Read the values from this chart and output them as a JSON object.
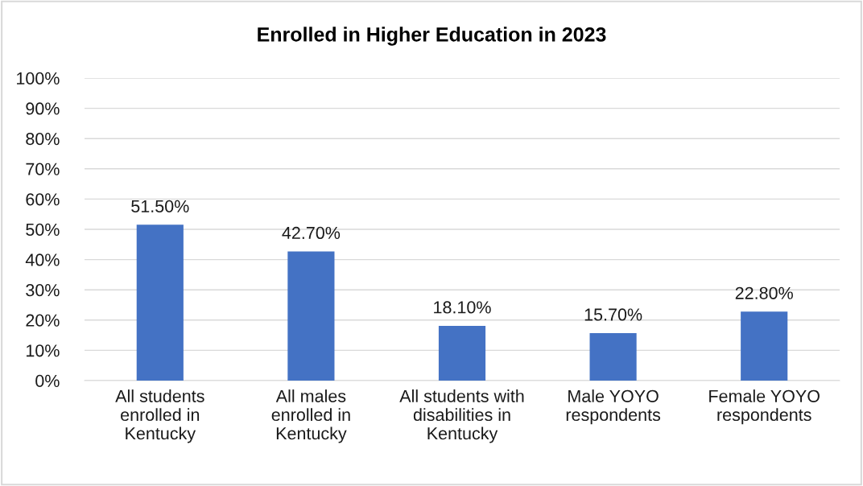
{
  "chart_data": {
    "type": "bar",
    "title": "Enrolled in Higher Education in 2023",
    "categories": [
      "All students\nenrolled in\nKentucky",
      "All males\nenrolled in\nKentucky",
      "All students with\ndisabilities in\nKentucky",
      "Male YOYO\nrespondents",
      "Female YOYO\nrespondents"
    ],
    "values": [
      51.5,
      42.7,
      18.1,
      15.7,
      22.8
    ],
    "value_labels": [
      "51.50%",
      "42.70%",
      "18.10%",
      "15.70%",
      "22.80%"
    ],
    "color": "#4472c4",
    "ylim": [
      0,
      100
    ],
    "yticks": [
      {
        "value": 0,
        "label": "0%"
      },
      {
        "value": 10,
        "label": "10%"
      },
      {
        "value": 20,
        "label": "20%"
      },
      {
        "value": 30,
        "label": "30%"
      },
      {
        "value": 40,
        "label": "40%"
      },
      {
        "value": 50,
        "label": "50%"
      },
      {
        "value": 60,
        "label": "60%"
      },
      {
        "value": 70,
        "label": "70%"
      },
      {
        "value": 80,
        "label": "80%"
      },
      {
        "value": 90,
        "label": "90%"
      },
      {
        "value": 100,
        "label": "100%"
      }
    ],
    "grid": "y"
  }
}
